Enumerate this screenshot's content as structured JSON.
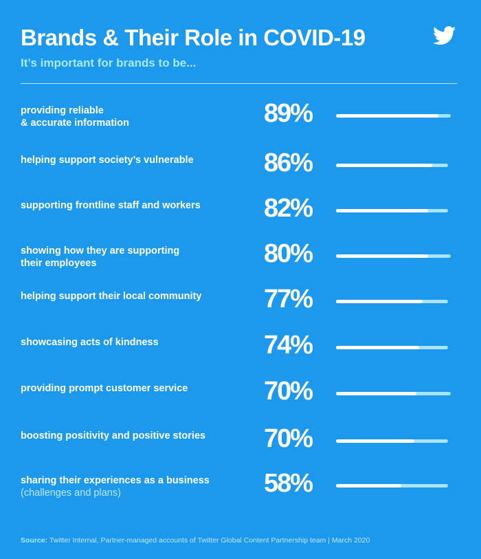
{
  "header": {
    "title": "Brands & Their Role in COVID-19",
    "subtitle": "It’s important for brands to be..."
  },
  "icons": {
    "brand": "twitter-bird-icon"
  },
  "colors": {
    "background": "#1c98ec",
    "bar_fill": "#ffffff",
    "bar_track": "#a9e4fb",
    "subtitle": "#a9ecff"
  },
  "chart_data": {
    "type": "bar",
    "orientation": "horizontal",
    "title": "Brands & Their Role in COVID-19",
    "subtitle": "It’s important for brands to be...",
    "xlim": [
      0,
      100
    ],
    "grid": false,
    "categories": [
      {
        "label": "providing reliable",
        "label2": "& accurate information",
        "note": ""
      },
      {
        "label": "helping support society’s vulnerable",
        "label2": "",
        "note": ""
      },
      {
        "label": "supporting frontline staff and workers",
        "label2": "",
        "note": ""
      },
      {
        "label": "showing how they are supporting",
        "label2": "their employees",
        "note": ""
      },
      {
        "label": "helping support their local community",
        "label2": "",
        "note": ""
      },
      {
        "label": "showcasing acts of kindness",
        "label2": "",
        "note": ""
      },
      {
        "label": "providing prompt customer service",
        "label2": "",
        "note": ""
      },
      {
        "label": "boosting positivity and positive stories",
        "label2": "",
        "note": ""
      },
      {
        "label": "sharing their experiences as a business",
        "label2": "",
        "note": "(challenges and plans)"
      }
    ],
    "values": [
      89,
      86,
      82,
      80,
      77,
      74,
      70,
      70,
      58
    ],
    "value_labels": [
      "89%",
      "86%",
      "82%",
      "80%",
      "77%",
      "74%",
      "70%",
      "70%",
      "58%"
    ]
  },
  "footer": {
    "source_label": "Source:",
    "source_text": " Twitter Internal, Partner-managed accounts of Twitter Global Content Partnership team | March 2020"
  }
}
